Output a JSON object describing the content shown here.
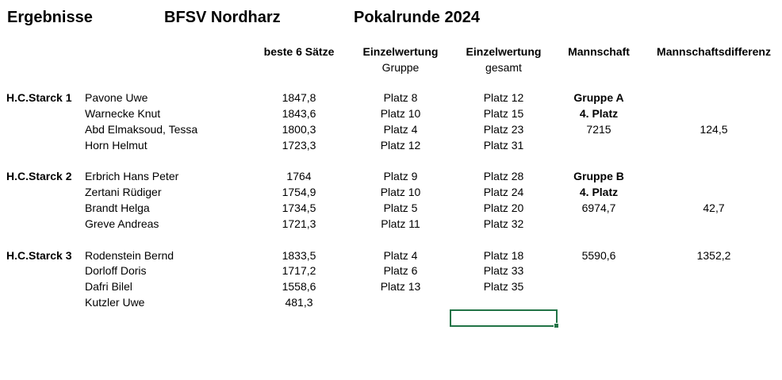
{
  "title": {
    "part1": "Ergebnisse",
    "part2": "BFSV Nordharz",
    "part3": "Pokalrunde 2024"
  },
  "headers": {
    "score": "beste 6 Sätze",
    "single_group": "Einzelwertung",
    "single_group_sub": "Gruppe",
    "single_total": "Einzelwertung",
    "single_total_sub": "gesamt",
    "team": "Mannschaft",
    "team_diff": "Mannschaftsdifferenz"
  },
  "teams": [
    {
      "name": "H.C.Starck 1",
      "rows": [
        {
          "player": "Pavone Uwe",
          "score": "1847,8",
          "group_place": "Platz 8",
          "total_place": "Platz 12",
          "team": "Gruppe A",
          "team_bold": true,
          "diff": ""
        },
        {
          "player": "Warnecke Knut",
          "score": "1843,6",
          "group_place": "Platz 10",
          "total_place": "Platz 15",
          "team": "4. Platz",
          "team_bold": true,
          "diff": ""
        },
        {
          "player": "Abd Elmaksoud, Tessa",
          "score": "1800,3",
          "group_place": "Platz 4",
          "total_place": "Platz 23",
          "team": "7215",
          "team_bold": false,
          "diff": "124,5"
        },
        {
          "player": "Horn Helmut",
          "score": "1723,3",
          "group_place": "Platz 12",
          "total_place": "Platz 31",
          "team": "",
          "team_bold": false,
          "diff": ""
        }
      ]
    },
    {
      "name": "H.C.Starck 2",
      "rows": [
        {
          "player": "Erbrich Hans Peter",
          "score": "1764",
          "group_place": "Platz 9",
          "total_place": "Platz 28",
          "team": "Gruppe B",
          "team_bold": true,
          "diff": ""
        },
        {
          "player": "Zertani Rüdiger",
          "score": "1754,9",
          "group_place": "Platz 10",
          "total_place": "Platz 24",
          "team": "4. Platz",
          "team_bold": true,
          "diff": ""
        },
        {
          "player": "Brandt Helga",
          "score": "1734,5",
          "group_place": "Platz 5",
          "total_place": "Platz 20",
          "team": "6974,7",
          "team_bold": false,
          "diff": "42,7"
        },
        {
          "player": "Greve Andreas",
          "score": "1721,3",
          "group_place": "Platz 11",
          "total_place": "Platz 32",
          "team": "",
          "team_bold": false,
          "diff": ""
        }
      ]
    },
    {
      "name": "H.C.Starck 3",
      "rows": [
        {
          "player": "Rodenstein Bernd",
          "score": "1833,5",
          "group_place": "Platz 4",
          "total_place": "Platz 18",
          "team": "5590,6",
          "team_bold": false,
          "diff": "1352,2"
        },
        {
          "player": "Dorloff Doris",
          "score": "1717,2",
          "group_place": "Platz 6",
          "total_place": "Platz 33",
          "team": "",
          "team_bold": false,
          "diff": ""
        },
        {
          "player": "Dafri Bilel",
          "score": "1558,6",
          "group_place": "Platz 13",
          "total_place": "Platz 35",
          "team": "",
          "team_bold": false,
          "diff": ""
        },
        {
          "player": "Kutzler Uwe",
          "score": "481,3",
          "group_place": "",
          "total_place": "",
          "team": "",
          "team_bold": false,
          "diff": ""
        }
      ]
    }
  ],
  "colors": {
    "selection": "#217346"
  }
}
